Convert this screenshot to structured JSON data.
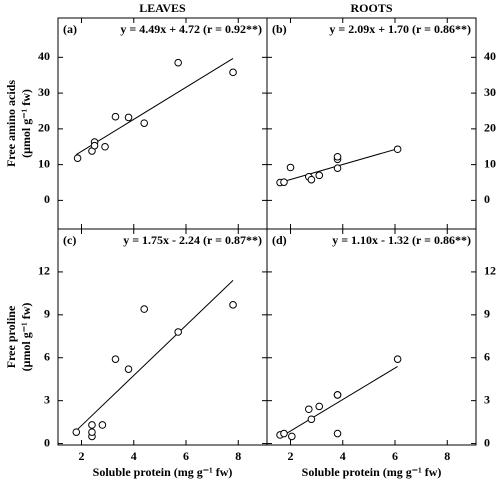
{
  "chart_data": [
    {
      "type": "scatter",
      "title": "LEAVES",
      "panel_label": "(a)",
      "annotation": "y = 4.49x + 4.72 (r = 0.92**)",
      "ylabel": [
        "Free amino acids",
        "(μmol g⁻¹ fw)"
      ],
      "x": [
        1.85,
        2.4,
        2.5,
        2.5,
        2.9,
        3.3,
        3.8,
        4.4,
        5.7,
        7.8
      ],
      "values": [
        11.8,
        13.8,
        16.3,
        15.3,
        15,
        23.4,
        23.2,
        21.6,
        38.5,
        35.8
      ],
      "trend": {
        "x": [
          1.8,
          7.8
        ],
        "y": [
          12.8,
          39.7
        ]
      },
      "xlim": [
        1.1,
        9.1
      ],
      "xticks": [
        2,
        4,
        6,
        8
      ],
      "ylim": [
        -8,
        51
      ],
      "yticks": [
        0,
        10,
        20,
        30,
        40
      ],
      "ytick_side": "left"
    },
    {
      "type": "scatter",
      "title": "ROOTS",
      "panel_label": "(b)",
      "annotation": "y = 2.09x + 1.70 (r = 0.86**)",
      "x": [
        1.6,
        1.75,
        2.0,
        2.7,
        2.8,
        3.1,
        3.8,
        3.8,
        3.8,
        6.1
      ],
      "values": [
        5,
        5.1,
        9.2,
        6.6,
        5.8,
        7,
        9,
        11.5,
        12.2,
        14.3
      ],
      "trend": {
        "x": [
          1.6,
          6.1
        ],
        "y": [
          5.0,
          14.45
        ]
      },
      "xlim": [
        1.1,
        9.1
      ],
      "xticks": [
        2,
        4,
        6,
        8
      ],
      "ylim": [
        -8,
        51
      ],
      "yticks": [
        0,
        10,
        20,
        30,
        40
      ],
      "ytick_side": "right"
    },
    {
      "type": "scatter",
      "panel_label": "(c)",
      "annotation": "y = 1.75x - 2.24 (r = 0.87**)",
      "ylabel": [
        "Free proline",
        "(μmol g⁻¹ fw)"
      ],
      "xlabel": "Soluble protein (mg g⁻¹ fw)",
      "x": [
        1.8,
        2.4,
        2.4,
        2.4,
        2.8,
        3.3,
        3.8,
        4.4,
        5.7,
        7.8
      ],
      "values": [
        0.8,
        0.5,
        0.8,
        1.3,
        1.3,
        5.9,
        5.2,
        9.4,
        7.8,
        9.7
      ],
      "trend": {
        "x": [
          1.8,
          7.8
        ],
        "y": [
          0.91,
          11.41
        ]
      },
      "xlim": [
        1.1,
        9.1
      ],
      "xticks": [
        2,
        4,
        6,
        8
      ],
      "ylim": [
        -0.1,
        15
      ],
      "yticks": [
        0,
        3,
        6,
        9,
        12
      ],
      "ytick_side": "left"
    },
    {
      "type": "scatter",
      "panel_label": "(d)",
      "annotation": "y = 1.10x - 1.32 (r = 0.86**)",
      "xlabel": "Soluble protein (mg g⁻¹ fw)",
      "x": [
        1.6,
        1.75,
        2.05,
        2.7,
        2.8,
        3.1,
        3.8,
        3.8,
        3.8,
        6.1
      ],
      "values": [
        0.6,
        0.7,
        0.5,
        2.4,
        1.7,
        2.6,
        3.4,
        3.4,
        0.7,
        5.9
      ],
      "trend": {
        "x": [
          1.6,
          6.1
        ],
        "y": [
          0.44,
          5.39
        ]
      },
      "xlim": [
        1.1,
        9.1
      ],
      "xticks": [
        2,
        4,
        6,
        8
      ],
      "ylim": [
        -0.1,
        15
      ],
      "yticks": [
        0,
        3,
        6,
        9,
        12
      ],
      "ytick_side": "right"
    }
  ]
}
